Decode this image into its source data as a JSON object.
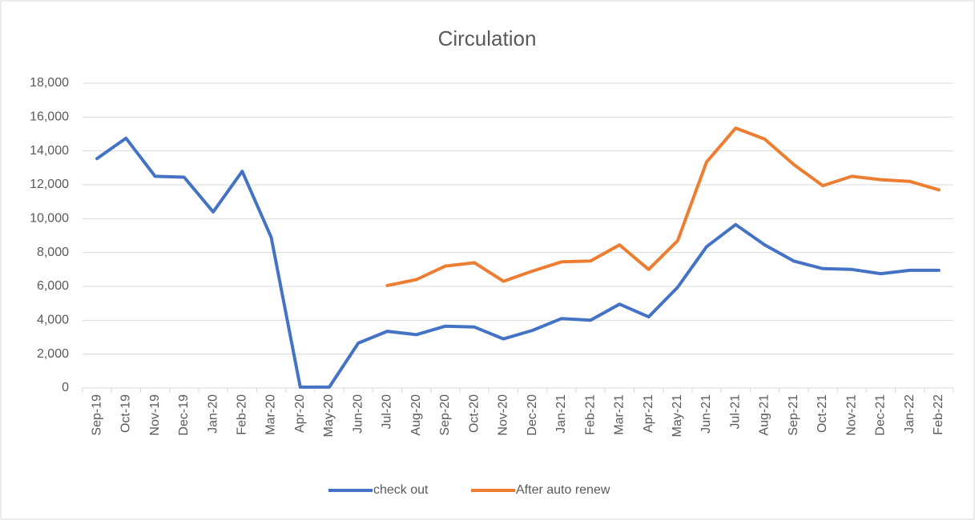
{
  "chart_data": {
    "type": "line",
    "title": "Circulation",
    "categories": [
      "Sep-19",
      "Oct-19",
      "Nov-19",
      "Dec-19",
      "Jan-20",
      "Feb-20",
      "Mar-20",
      "Apr-20",
      "May-20",
      "Jun-20",
      "Jul-20",
      "Aug-20",
      "Sep-20",
      "Oct-20",
      "Nov-20",
      "Dec-20",
      "Jan-21",
      "Feb-21",
      "Mar-21",
      "Apr-21",
      "May-21",
      "Jun-21",
      "Jul-21",
      "Aug-21",
      "Sep-21",
      "Oct-21",
      "Nov-21",
      "Dec-21",
      "Jan-22",
      "Feb-22"
    ],
    "series": [
      {
        "name": "check out",
        "color": "#4472c4",
        "values": [
          13550,
          14750,
          12500,
          12450,
          10400,
          12800,
          8900,
          50,
          50,
          2650,
          3350,
          3150,
          3650,
          3600,
          2900,
          3400,
          4100,
          4000,
          4950,
          4200,
          5950,
          8350,
          9650,
          8450,
          7500,
          7050,
          7000,
          6750,
          6950,
          6950
        ]
      },
      {
        "name": "After auto renew",
        "color": "#ed7d31",
        "values": [
          null,
          null,
          null,
          null,
          null,
          null,
          null,
          null,
          null,
          null,
          6050,
          6400,
          7200,
          7400,
          6300,
          6900,
          7450,
          7500,
          8450,
          7000,
          8700,
          13350,
          15350,
          14700,
          13200,
          11950,
          12500,
          12300,
          12200,
          11700
        ]
      }
    ],
    "ylim": [
      0,
      18000
    ],
    "yticks": [
      0,
      {
        "value": 2000,
        "label": "2,000"
      },
      {
        "value": 4000,
        "label": "4,000"
      },
      {
        "value": 6000,
        "label": "6,000"
      },
      {
        "value": 8000,
        "label": "8,000"
      },
      {
        "value": 10000,
        "label": "10,000"
      },
      {
        "value": 12000,
        "label": "12,000"
      },
      {
        "value": 14000,
        "label": "14,000"
      },
      {
        "value": 16000,
        "label": "16,000"
      },
      {
        "value": 18000,
        "label": "18,000"
      }
    ],
    "grid": true,
    "legend": "bottom"
  }
}
